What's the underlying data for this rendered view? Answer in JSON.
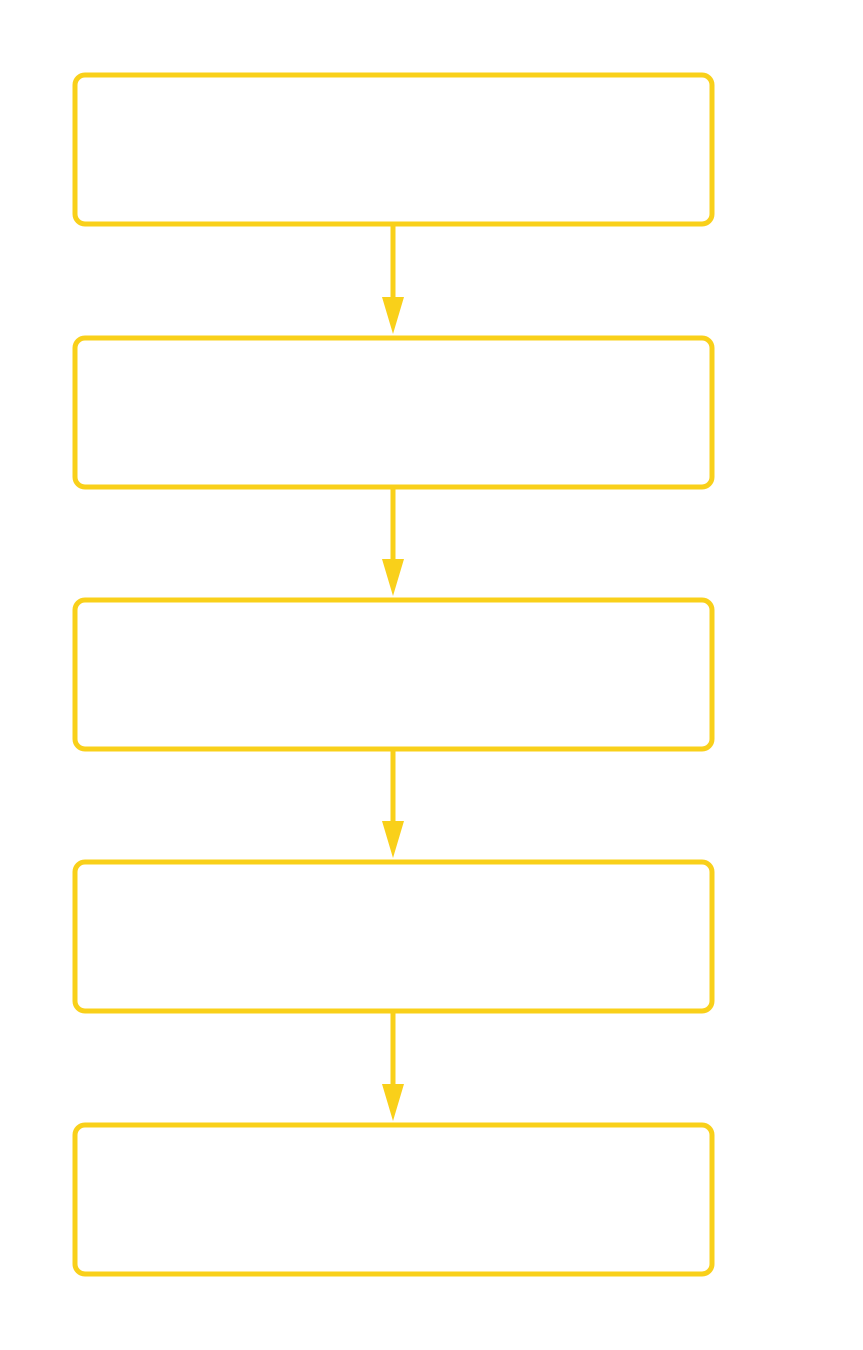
{
  "flowchart": {
    "stroke_color": "#f9d01a",
    "background_color": "#ffffff",
    "steps": [
      {
        "label": ""
      },
      {
        "label": ""
      },
      {
        "label": ""
      },
      {
        "label": ""
      },
      {
        "label": ""
      }
    ],
    "connectors": [
      {
        "from": 0,
        "to": 1
      },
      {
        "from": 1,
        "to": 2
      },
      {
        "from": 2,
        "to": 3
      },
      {
        "from": 3,
        "to": 4
      }
    ]
  }
}
